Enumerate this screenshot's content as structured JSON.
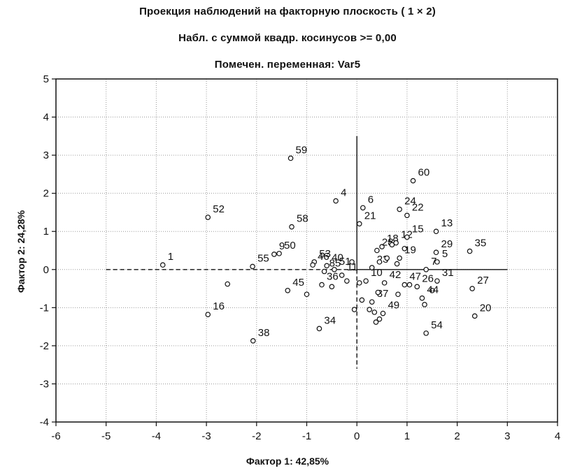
{
  "titles": {
    "line1": "Проекция наблюдений на факторную плоскость  ( 1 ×  2)",
    "line2": "Набл. с суммой квадр. косинусов >=  0,00",
    "line3": "Помечен. переменная: Var5"
  },
  "chart_data": {
    "type": "scatter",
    "title": "Проекция наблюдений на факторную плоскость  ( 1 ×  2)",
    "subtitle": "Набл. с суммой квадр. косинусов >=  0,00",
    "subtitle2": "Помечен. переменная: Var5",
    "xlabel": "Фактор 1: 42,85%",
    "ylabel": "Фактор 2: 24,28%",
    "xlim": [
      -6,
      4
    ],
    "ylim": [
      -4,
      5
    ],
    "xticks": [
      "-6",
      "-5",
      "-4",
      "-3",
      "-2",
      "-1",
      "0",
      "1",
      "2",
      "3",
      "4"
    ],
    "yticks": [
      "-4",
      "-3",
      "-2",
      "-1",
      "0",
      "1",
      "2",
      "3",
      "4",
      "5"
    ],
    "grid": true,
    "reference_lines": {
      "horizontal": {
        "y": 0,
        "x_from": -5,
        "x_to": 3,
        "dashed_left": true
      },
      "vertical": {
        "x": 0,
        "y_from": -2.6,
        "y_to": 3.5,
        "dashed_bottom": true
      }
    },
    "points": [
      {
        "label": "1",
        "x": -3.87,
        "y": 0.12
      },
      {
        "label": "52",
        "x": -2.97,
        "y": 1.37
      },
      {
        "label": "59",
        "x": -1.32,
        "y": 2.92
      },
      {
        "label": "58",
        "x": -1.3,
        "y": 1.12
      },
      {
        "label": "9",
        "x": -1.65,
        "y": 0.4
      },
      {
        "label": "50",
        "x": -1.55,
        "y": 0.42
      },
      {
        "label": "55",
        "x": -2.08,
        "y": 0.08
      },
      {
        "label": "",
        "x": -2.58,
        "y": -0.38
      },
      {
        "label": "16",
        "x": -2.97,
        "y": -1.18
      },
      {
        "label": "38",
        "x": -2.07,
        "y": -1.87
      },
      {
        "label": "53",
        "x": -0.85,
        "y": 0.2
      },
      {
        "label": "46",
        "x": -0.88,
        "y": 0.12
      },
      {
        "label": "40",
        "x": -0.6,
        "y": 0.1
      },
      {
        "label": "45",
        "x": -1.38,
        "y": -0.55
      },
      {
        "label": "",
        "x": -1.0,
        "y": -0.65
      },
      {
        "label": "36",
        "x": -0.7,
        "y": -0.4
      },
      {
        "label": "",
        "x": -0.5,
        "y": -0.45
      },
      {
        "label": "85",
        "x": -0.65,
        "y": -0.05
      },
      {
        "label": "51",
        "x": -0.45,
        "y": 0.0
      },
      {
        "label": "11",
        "x": -0.3,
        "y": -0.15
      },
      {
        "label": "4",
        "x": -0.42,
        "y": 1.8
      },
      {
        "label": "",
        "x": -0.2,
        "y": -0.3
      },
      {
        "label": "34",
        "x": -0.75,
        "y": -1.55
      },
      {
        "label": "",
        "x": -0.1,
        "y": 0.2
      },
      {
        "label": "21",
        "x": 0.05,
        "y": 1.2
      },
      {
        "label": "6",
        "x": 0.12,
        "y": 1.62
      },
      {
        "label": "23",
        "x": 0.3,
        "y": 0.05
      },
      {
        "label": "",
        "x": 0.05,
        "y": -0.35
      },
      {
        "label": "10",
        "x": 0.18,
        "y": -0.3
      },
      {
        "label": "",
        "x": 0.1,
        "y": -0.8
      },
      {
        "label": "",
        "x": -0.05,
        "y": -1.05
      },
      {
        "label": "37",
        "x": 0.3,
        "y": -0.85
      },
      {
        "label": "",
        "x": 0.25,
        "y": -1.05
      },
      {
        "label": "",
        "x": 0.35,
        "y": -1.12
      },
      {
        "label": "",
        "x": 0.45,
        "y": -1.3
      },
      {
        "label": "",
        "x": 0.38,
        "y": -1.38
      },
      {
        "label": "49",
        "x": 0.52,
        "y": -1.15
      },
      {
        "label": "",
        "x": 0.42,
        "y": -0.6
      },
      {
        "label": "42",
        "x": 0.55,
        "y": -0.35
      },
      {
        "label": "18",
        "x": 0.5,
        "y": 0.6
      },
      {
        "label": "28",
        "x": 0.4,
        "y": 0.5
      },
      {
        "label": "",
        "x": 0.45,
        "y": 0.2
      },
      {
        "label": "",
        "x": 0.6,
        "y": 0.3
      },
      {
        "label": "",
        "x": 0.7,
        "y": 0.65
      },
      {
        "label": "12",
        "x": 0.78,
        "y": 0.7
      },
      {
        "label": "24",
        "x": 0.85,
        "y": 1.58
      },
      {
        "label": "22",
        "x": 1.0,
        "y": 1.42
      },
      {
        "label": "60",
        "x": 1.12,
        "y": 2.33
      },
      {
        "label": "15",
        "x": 1.0,
        "y": 0.85
      },
      {
        "label": "",
        "x": 0.95,
        "y": 0.55
      },
      {
        "label": "19",
        "x": 0.85,
        "y": 0.3
      },
      {
        "label": "",
        "x": 0.8,
        "y": 0.15
      },
      {
        "label": "7",
        "x": 1.38,
        "y": 0.0
      },
      {
        "label": "47",
        "x": 0.95,
        "y": -0.4
      },
      {
        "label": "",
        "x": 0.82,
        "y": -0.65
      },
      {
        "label": "",
        "x": 1.05,
        "y": -0.4
      },
      {
        "label": "26",
        "x": 1.2,
        "y": -0.45
      },
      {
        "label": "",
        "x": 1.5,
        "y": -0.55
      },
      {
        "label": "44",
        "x": 1.3,
        "y": -0.75
      },
      {
        "label": "",
        "x": 1.35,
        "y": -0.92
      },
      {
        "label": "54",
        "x": 1.38,
        "y": -1.67
      },
      {
        "label": "13",
        "x": 1.58,
        "y": 1.0
      },
      {
        "label": "29",
        "x": 1.58,
        "y": 0.45
      },
      {
        "label": "5",
        "x": 1.6,
        "y": 0.2
      },
      {
        "label": "31",
        "x": 1.6,
        "y": -0.3
      },
      {
        "label": "35",
        "x": 2.25,
        "y": 0.48
      },
      {
        "label": "27",
        "x": 2.3,
        "y": -0.5
      },
      {
        "label": "20",
        "x": 2.35,
        "y": -1.22
      }
    ]
  }
}
